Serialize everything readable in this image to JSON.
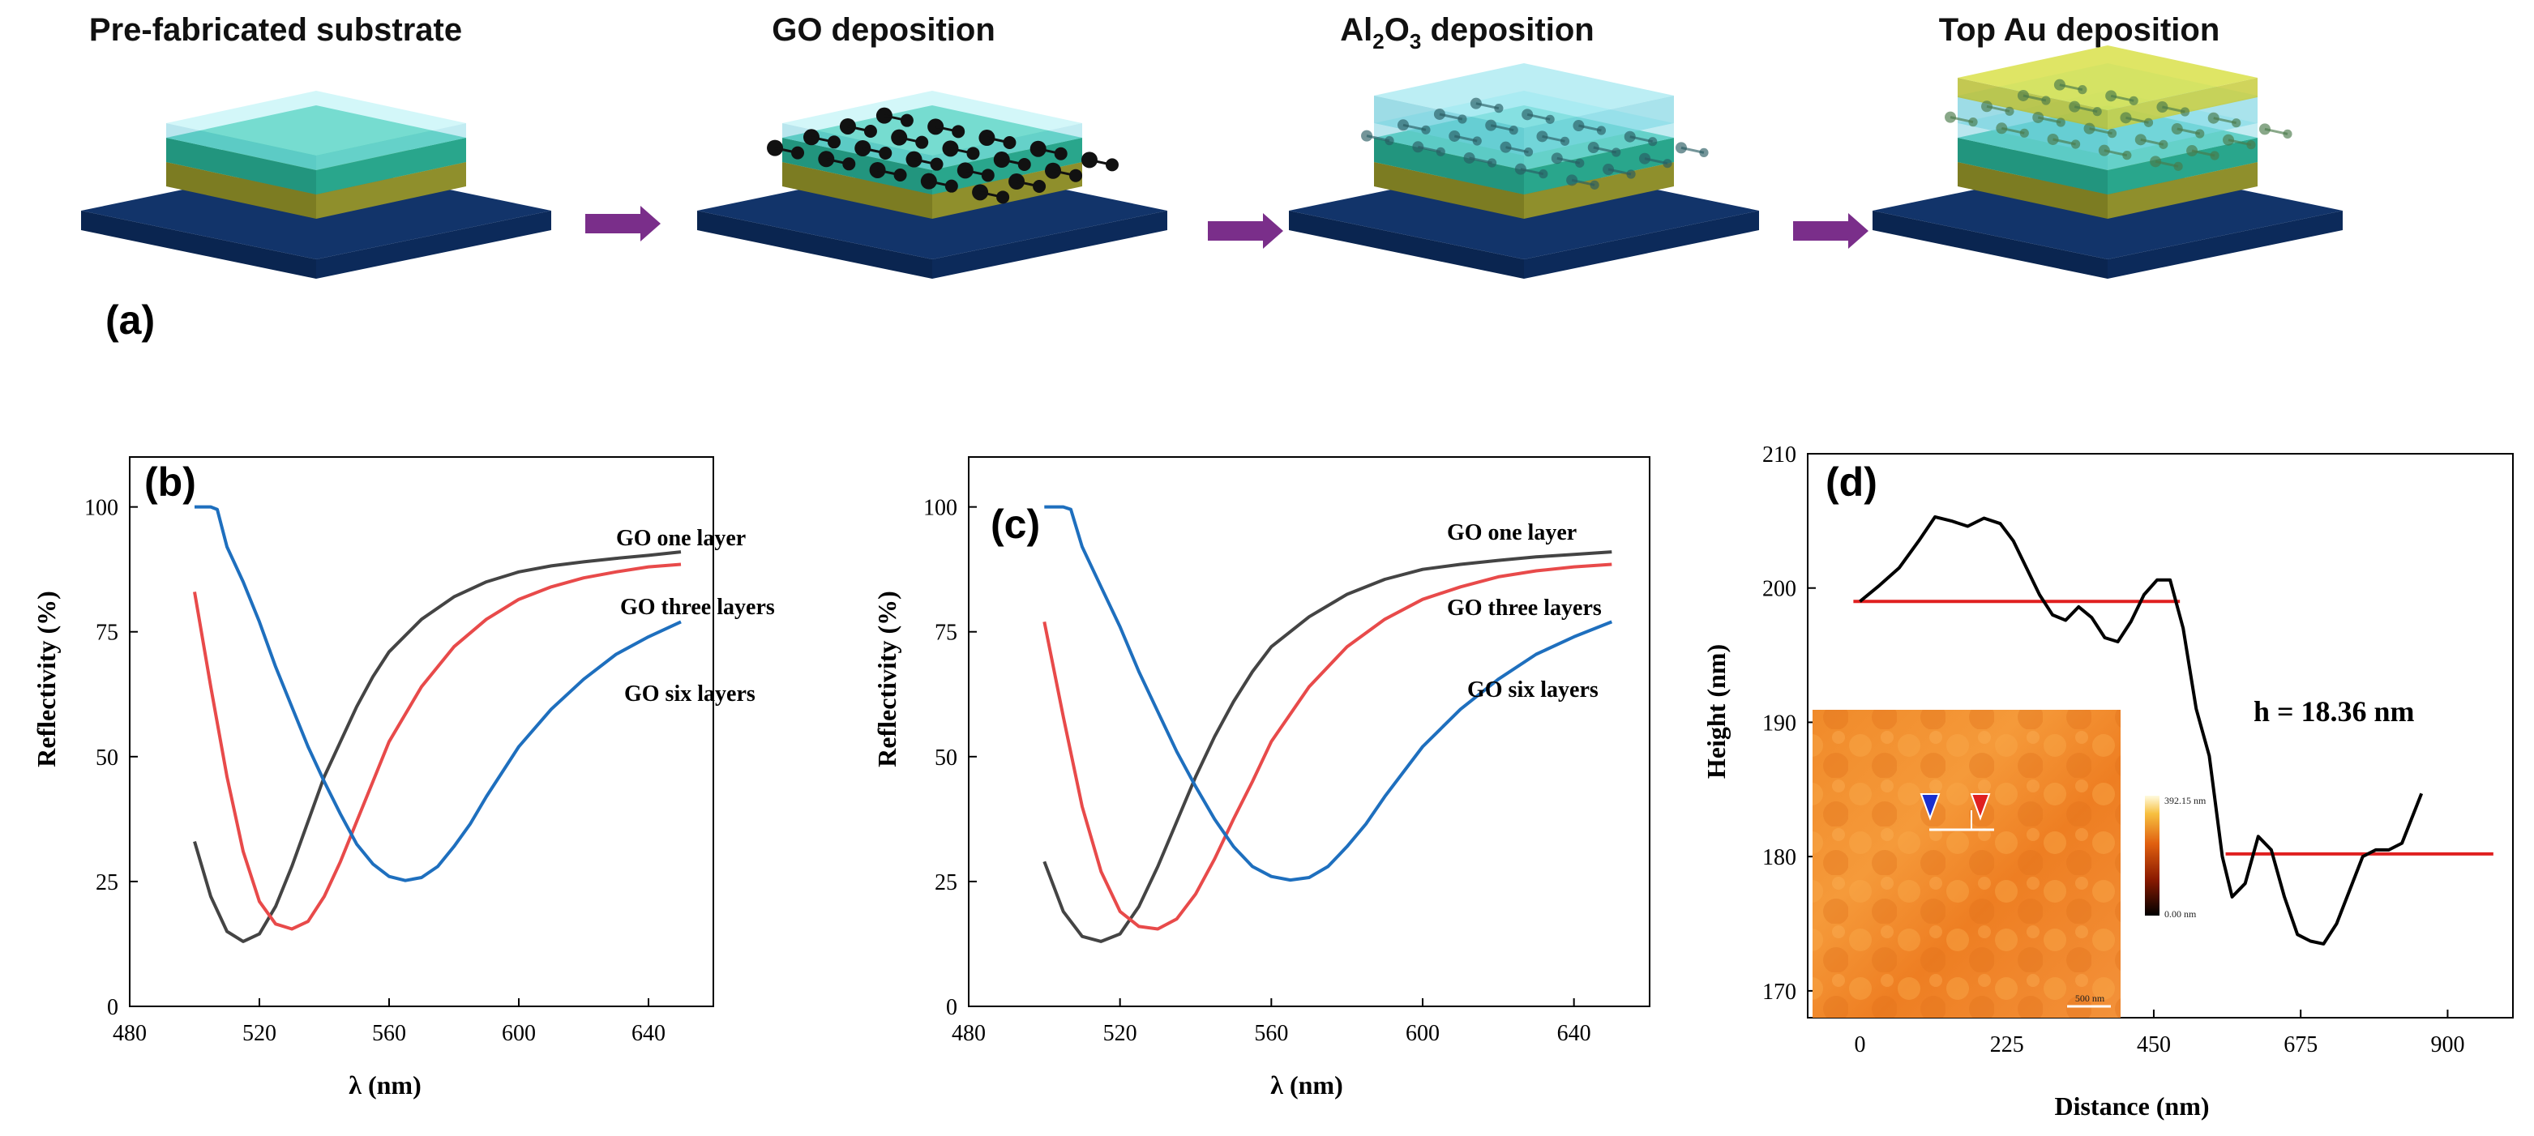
{
  "panel_a": {
    "label": "(a)",
    "steps": [
      {
        "title_main": "Pre-fabricated substrate",
        "title_parts": []
      },
      {
        "title_main": "GO deposition",
        "title_parts": []
      },
      {
        "title_main": "",
        "title_parts": [
          "Al",
          "2",
          "O",
          "3",
          " deposition"
        ]
      },
      {
        "title_main": "Top Au deposition",
        "title_parts": []
      }
    ],
    "colors": {
      "base": "#0d2d5e",
      "gold_layer": "#8a8a2a",
      "teal_layer": "#2fb59a",
      "glass": "#9fe3ee",
      "au_top": "#d9e04a",
      "arrow": "#7a2e8a"
    }
  },
  "chart_data": [
    {
      "panel": "(b)",
      "type": "line",
      "xlabel": "λ (nm)",
      "ylabel": "Reflectivity (%)",
      "xlim": [
        480,
        660
      ],
      "ylim": [
        0,
        110
      ],
      "xticks": [
        480,
        520,
        560,
        600,
        640
      ],
      "yticks": [
        0,
        25,
        50,
        75,
        100
      ],
      "series": [
        {
          "name": "GO one layer",
          "color": "#444444",
          "x": [
            500,
            505,
            510,
            515,
            520,
            525,
            530,
            535,
            540,
            545,
            550,
            555,
            560,
            570,
            580,
            590,
            600,
            610,
            620,
            630,
            640,
            650
          ],
          "y": [
            33,
            22,
            15,
            13,
            14.5,
            20,
            28,
            37,
            46,
            53,
            60,
            66,
            71,
            77.5,
            82,
            85,
            87,
            88.2,
            89,
            89.7,
            90.3,
            91
          ]
        },
        {
          "name": "GO three layers",
          "color": "#e84a4a",
          "x": [
            500,
            505,
            510,
            515,
            520,
            525,
            530,
            535,
            540,
            545,
            550,
            555,
            560,
            570,
            580,
            590,
            600,
            610,
            620,
            630,
            640,
            650
          ],
          "y": [
            83,
            64,
            46,
            31,
            21,
            16.5,
            15.5,
            17,
            22,
            29,
            37,
            45,
            53,
            64,
            72,
            77.5,
            81.5,
            84,
            85.8,
            87,
            88,
            88.5
          ]
        },
        {
          "name": "GO six layers",
          "color": "#1e6fbe",
          "x": [
            500,
            505,
            507,
            510,
            515,
            520,
            525,
            530,
            535,
            540,
            545,
            550,
            555,
            560,
            565,
            570,
            575,
            580,
            585,
            590,
            600,
            610,
            620,
            630,
            640,
            650
          ],
          "y": [
            100,
            100,
            99.5,
            92,
            85,
            77,
            68,
            60,
            52,
            45,
            38.5,
            32.5,
            28.5,
            26,
            25.2,
            25.8,
            28,
            32,
            36.5,
            42,
            52,
            59.5,
            65.5,
            70.5,
            74,
            77
          ]
        }
      ],
      "legend": [
        "GO one layer",
        "GO three layers",
        "GO six layers"
      ]
    },
    {
      "panel": "(c)",
      "type": "line",
      "xlabel": "λ (nm)",
      "ylabel": "Reflectivity (%)",
      "xlim": [
        480,
        660
      ],
      "ylim": [
        0,
        110
      ],
      "xticks": [
        480,
        520,
        560,
        600,
        640
      ],
      "yticks": [
        0,
        25,
        50,
        75,
        100
      ],
      "series": [
        {
          "name": "GO one layer",
          "color": "#444444",
          "x": [
            500,
            505,
            510,
            515,
            520,
            525,
            530,
            535,
            540,
            545,
            550,
            555,
            560,
            570,
            580,
            590,
            600,
            610,
            620,
            630,
            640,
            650
          ],
          "y": [
            29,
            19,
            14,
            13,
            14.5,
            20,
            28,
            37,
            46,
            54,
            61,
            67,
            72,
            78,
            82.5,
            85.5,
            87.5,
            88.5,
            89.3,
            90,
            90.5,
            91
          ]
        },
        {
          "name": "GO three layers",
          "color": "#e84a4a",
          "x": [
            500,
            505,
            510,
            515,
            520,
            525,
            530,
            535,
            540,
            545,
            550,
            555,
            560,
            570,
            580,
            590,
            600,
            610,
            620,
            630,
            640,
            650
          ],
          "y": [
            77,
            58,
            40,
            27,
            19,
            16,
            15.5,
            17.5,
            22.5,
            29.5,
            37.5,
            45,
            53,
            64,
            72,
            77.5,
            81.5,
            84,
            86,
            87.2,
            88,
            88.5
          ]
        },
        {
          "name": "GO six layers",
          "color": "#1e6fbe",
          "x": [
            500,
            505,
            507,
            510,
            515,
            520,
            525,
            530,
            535,
            540,
            545,
            550,
            555,
            560,
            565,
            570,
            575,
            580,
            585,
            590,
            600,
            610,
            620,
            630,
            640,
            650
          ],
          "y": [
            100,
            100,
            99.5,
            92,
            84,
            76,
            67,
            59,
            51,
            44,
            37.5,
            32,
            28,
            26,
            25.3,
            25.8,
            28,
            32,
            36.5,
            42,
            52,
            59.5,
            65.5,
            70.5,
            74,
            77
          ]
        }
      ],
      "legend": [
        "GO one layer",
        "GO three layers",
        "GO six layers"
      ]
    },
    {
      "panel": "(d)",
      "type": "line",
      "xlabel": "Distance (nm)",
      "ylabel": "Height (nm)",
      "xlim": [
        -80,
        1000
      ],
      "ylim": [
        168,
        210
      ],
      "xticks": [
        0,
        225,
        450,
        675,
        900
      ],
      "yticks": [
        170,
        180,
        190,
        200,
        210
      ],
      "series": [
        {
          "name": "height profile",
          "color": "#000000",
          "x": [
            0,
            30,
            60,
            90,
            115,
            140,
            165,
            190,
            215,
            235,
            255,
            275,
            295,
            315,
            335,
            355,
            375,
            395,
            415,
            435,
            455,
            475,
            495,
            515,
            535,
            555,
            570,
            590,
            610,
            630,
            650,
            670,
            690,
            710,
            730,
            750,
            770,
            790,
            810,
            830,
            860
          ],
          "y": [
            199,
            200.2,
            201.5,
            203.5,
            205.3,
            205,
            204.6,
            205.2,
            204.8,
            203.5,
            201.5,
            199.5,
            198,
            197.6,
            198.6,
            197.8,
            196.3,
            196,
            197.5,
            199.5,
            200.6,
            200.6,
            197,
            191,
            187.5,
            180,
            177,
            178,
            181.5,
            180.5,
            177,
            174.2,
            173.7,
            173.5,
            175,
            177.5,
            180,
            180.5,
            180.5,
            181,
            184.7
          ]
        }
      ],
      "reference_lines": [
        {
          "y": 199,
          "x_from": -10,
          "x_to": 490,
          "color": "#e02020"
        },
        {
          "y": 180.2,
          "x_from": 560,
          "x_to": 970,
          "color": "#e02020"
        }
      ],
      "annotation": {
        "text": "h = 18.36 nm",
        "color": "#e02020"
      },
      "inset": {
        "colorbar_max": "392.15 nm",
        "colorbar_min": "0.00 nm",
        "scale_bar": "500 nm"
      }
    }
  ]
}
